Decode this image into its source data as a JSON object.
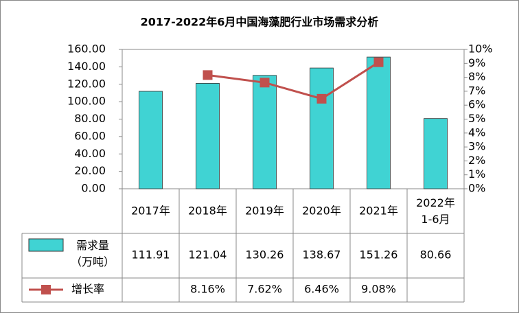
{
  "chart_data": {
    "type": "bar",
    "title": "2017-2022年6月中国海藻肥行业市场需求分析",
    "categories": [
      "2017年",
      "2018年",
      "2019年",
      "2020年",
      "2021年",
      "2022年\n1-6月"
    ],
    "series": [
      {
        "name": "需求量\n（万吨）",
        "color": "#40d3d3",
        "values": [
          111.91,
          121.04,
          130.26,
          138.67,
          151.26,
          80.66
        ]
      },
      {
        "name": "增长率",
        "type": "line",
        "axis": "y2",
        "color": "#c0504d",
        "values": [
          null,
          8.16,
          7.62,
          6.46,
          9.08,
          null
        ],
        "value_labels": [
          null,
          "8.16%",
          "7.62%",
          "6.46%",
          "9.08%",
          null
        ]
      }
    ],
    "ylim": [
      0,
      160
    ],
    "yticks": [
      {
        "value": 0,
        "label": "0.00"
      },
      {
        "value": 20,
        "label": "20.00"
      },
      {
        "value": 40,
        "label": "40.00"
      },
      {
        "value": 60,
        "label": "60.00"
      },
      {
        "value": 80,
        "label": "80.00"
      },
      {
        "value": 100,
        "label": "100.00"
      },
      {
        "value": 120,
        "label": "120.00"
      },
      {
        "value": 140,
        "label": "140.00"
      },
      {
        "value": 160,
        "label": "160.00"
      }
    ],
    "y2lim": [
      0,
      10
    ],
    "y2ticks": [
      {
        "value": 0,
        "label": "0%"
      },
      {
        "value": 1,
        "label": "1%"
      },
      {
        "value": 2,
        "label": "2%"
      },
      {
        "value": 3,
        "label": "3%"
      },
      {
        "value": 4,
        "label": "4%"
      },
      {
        "value": 5,
        "label": "5%"
      },
      {
        "value": 6,
        "label": "6%"
      },
      {
        "value": 7,
        "label": "7%"
      },
      {
        "value": 8,
        "label": "8%"
      },
      {
        "value": 9,
        "label": "9%"
      },
      {
        "value": 10,
        "label": "10%"
      }
    ],
    "data_table": true
  }
}
